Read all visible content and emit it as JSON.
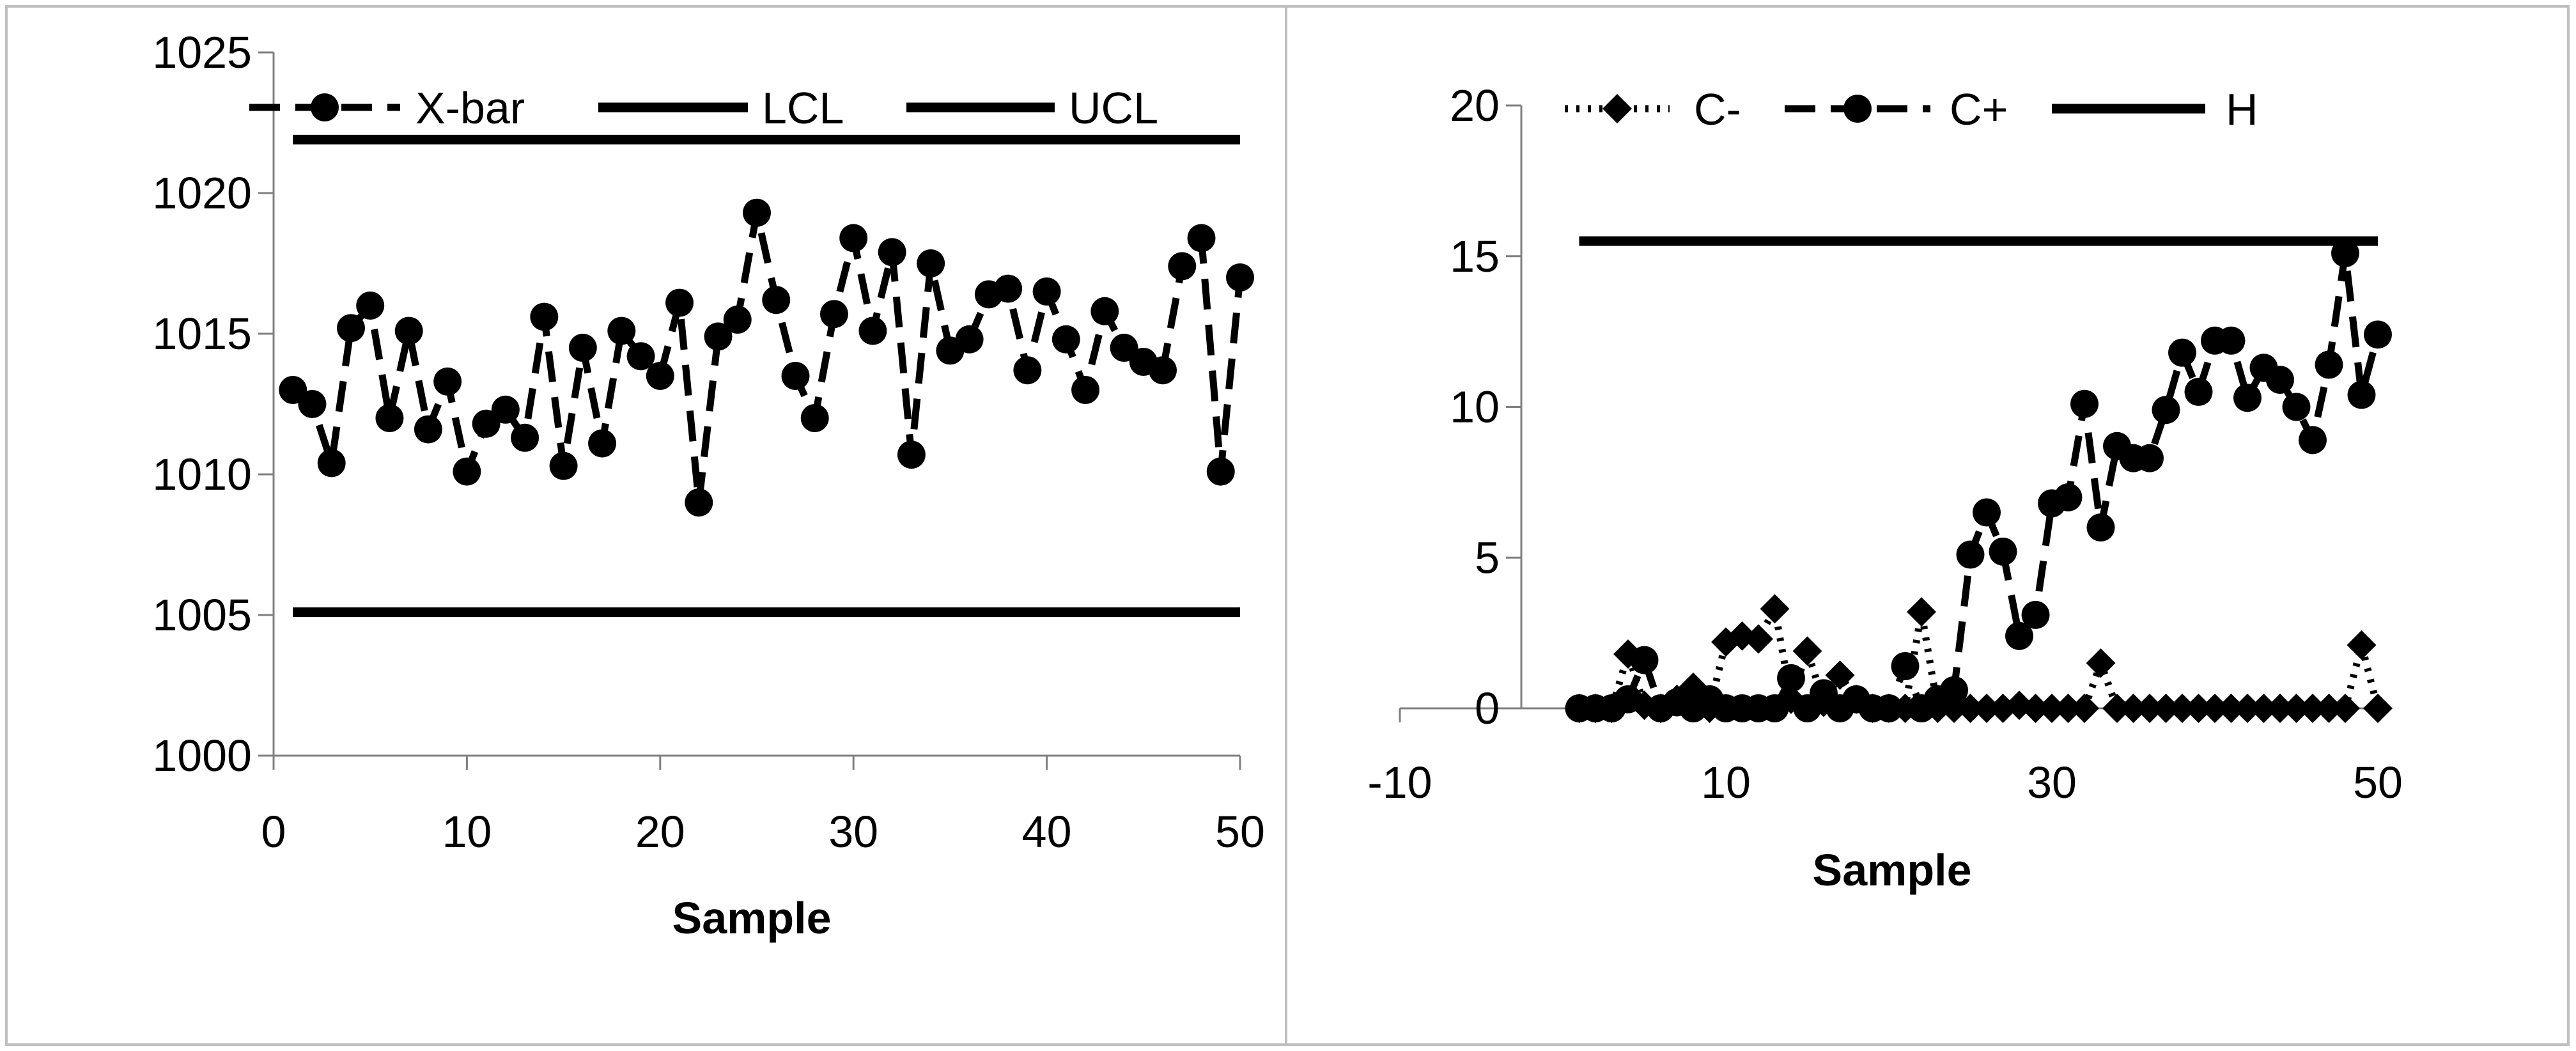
{
  "chart_data": [
    {
      "type": "line",
      "xlabel": "Sample",
      "ylabel": "",
      "xlim": [
        0,
        50
      ],
      "ylim": [
        1000,
        1025
      ],
      "xticks": [
        0,
        10,
        20,
        30,
        40,
        50
      ],
      "yticks": [
        1000,
        1005,
        1010,
        1015,
        1020,
        1025
      ],
      "legend_position": "top",
      "series": [
        {
          "name": "X-bar",
          "style": "dashed-circle",
          "x": [
            1,
            2,
            3,
            4,
            5,
            6,
            7,
            8,
            9,
            10,
            11,
            12,
            13,
            14,
            15,
            16,
            17,
            18,
            19,
            20,
            21,
            22,
            23,
            24,
            25,
            26,
            27,
            28,
            29,
            30,
            31,
            32,
            33,
            34,
            35,
            36,
            37,
            38,
            39,
            40,
            41,
            42,
            43,
            44,
            45,
            46,
            47,
            48,
            49,
            50
          ],
          "values": [
            1013.0,
            1012.5,
            1010.4,
            1015.2,
            1016.0,
            1012.0,
            1015.1,
            1011.6,
            1013.3,
            1010.1,
            1011.8,
            1012.3,
            1011.3,
            1015.6,
            1010.3,
            1014.5,
            1011.1,
            1015.1,
            1014.2,
            1013.5,
            1016.1,
            1009.0,
            1014.9,
            1015.5,
            1019.3,
            1016.2,
            1013.5,
            1012.0,
            1015.7,
            1018.4,
            1015.1,
            1017.9,
            1010.7,
            1017.5,
            1014.4,
            1014.8,
            1016.4,
            1016.6,
            1013.7,
            1016.5,
            1014.8,
            1013.0,
            1015.8,
            1014.5,
            1014.0,
            1013.7,
            1017.4,
            1018.4,
            1010.1,
            1017.0
          ]
        },
        {
          "name": "LCL",
          "style": "solid",
          "x": [
            1,
            50
          ],
          "values": [
            1005.1,
            1005.1
          ]
        },
        {
          "name": "UCL",
          "style": "solid",
          "x": [
            1,
            50
          ],
          "values": [
            1021.9,
            1021.9
          ]
        }
      ]
    },
    {
      "type": "line",
      "xlabel": "Sample",
      "ylabel": "",
      "xlim": [
        -10,
        50
      ],
      "ylim": [
        0,
        20
      ],
      "xticks": [
        -10,
        10,
        30,
        50
      ],
      "yticks": [
        0,
        5,
        10,
        15,
        20
      ],
      "legend_position": "top",
      "series": [
        {
          "name": "C-",
          "style": "dotted-diamond",
          "x": [
            1,
            2,
            3,
            4,
            5,
            6,
            7,
            8,
            9,
            10,
            11,
            12,
            13,
            14,
            15,
            16,
            17,
            18,
            19,
            20,
            21,
            22,
            23,
            24,
            25,
            26,
            27,
            28,
            29,
            30,
            31,
            32,
            33,
            34,
            35,
            36,
            37,
            38,
            39,
            40,
            41,
            42,
            43,
            44,
            45,
            46,
            47,
            48,
            49,
            50
          ],
          "values": [
            0,
            0,
            0,
            1.8,
            0.1,
            0,
            0.3,
            0.7,
            0,
            2.2,
            2.4,
            2.3,
            3.3,
            0.3,
            1.9,
            0.2,
            1.1,
            0.3,
            0,
            0,
            0,
            3.2,
            0,
            0,
            0,
            0,
            0,
            0.1,
            0,
            0,
            0,
            0,
            1.5,
            0,
            0,
            0,
            0,
            0,
            0,
            0,
            0,
            0,
            0,
            0,
            0,
            0,
            0,
            0,
            2.1,
            0
          ]
        },
        {
          "name": "C+",
          "style": "dashed-circle",
          "x": [
            1,
            2,
            3,
            4,
            5,
            6,
            7,
            8,
            9,
            10,
            11,
            12,
            13,
            14,
            15,
            16,
            17,
            18,
            19,
            20,
            21,
            22,
            23,
            24,
            25,
            26,
            27,
            28,
            29,
            30,
            31,
            32,
            33,
            34,
            35,
            36,
            37,
            38,
            39,
            40,
            41,
            42,
            43,
            44,
            45,
            46,
            47,
            48,
            49,
            50
          ],
          "values": [
            0,
            0,
            0,
            0.3,
            1.6,
            0,
            0.2,
            0,
            0.3,
            0,
            0,
            0,
            0,
            1.0,
            0,
            0.5,
            0,
            0.3,
            0,
            0,
            1.4,
            0,
            0.3,
            0.6,
            5.1,
            6.5,
            5.2,
            2.4,
            3.1,
            6.8,
            7.0,
            10.1,
            6.0,
            8.7,
            8.3,
            8.3,
            9.9,
            11.8,
            10.5,
            12.2,
            12.2,
            10.3,
            11.3,
            10.9,
            10.0,
            8.9,
            11.4,
            15.1,
            10.4,
            12.4
          ]
        },
        {
          "name": "H",
          "style": "solid",
          "x": [
            1,
            50
          ],
          "values": [
            15.5,
            15.5
          ]
        }
      ]
    }
  ]
}
